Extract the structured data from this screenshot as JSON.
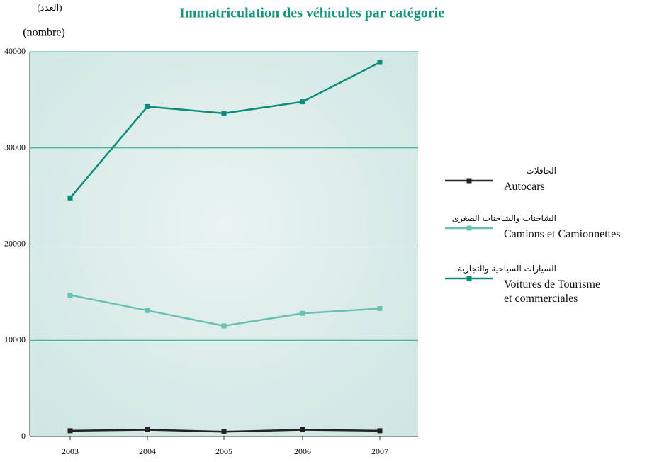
{
  "chart_data": {
    "type": "line",
    "title": "Immatriculation des  véhicules par catégorie",
    "y_label_ar": "(العدد)",
    "y_label": "(nombre)",
    "categories": [
      "2003",
      "2004",
      "2005",
      "2006",
      "2007"
    ],
    "ylim": [
      0,
      40000
    ],
    "yticks": [
      0,
      10000,
      20000,
      30000,
      40000
    ],
    "grid": true,
    "series": [
      {
        "name": "Autocars",
        "name_ar": "الحافلات",
        "color": "#222222",
        "values": [
          600,
          700,
          500,
          700,
          600
        ]
      },
      {
        "name": "Camions et Camionnettes",
        "name_ar": "الشاحنات والشاحنات الصغرى",
        "color": "#6cbfb3",
        "values": [
          14700,
          13100,
          11500,
          12800,
          13300
        ]
      },
      {
        "name": "Voitures de Tourisme\net commerciales",
        "name_ar": "السيارات السياحية والتجارية",
        "color": "#0b8c78",
        "values": [
          24800,
          34300,
          33600,
          34800,
          38900
        ]
      }
    ]
  }
}
